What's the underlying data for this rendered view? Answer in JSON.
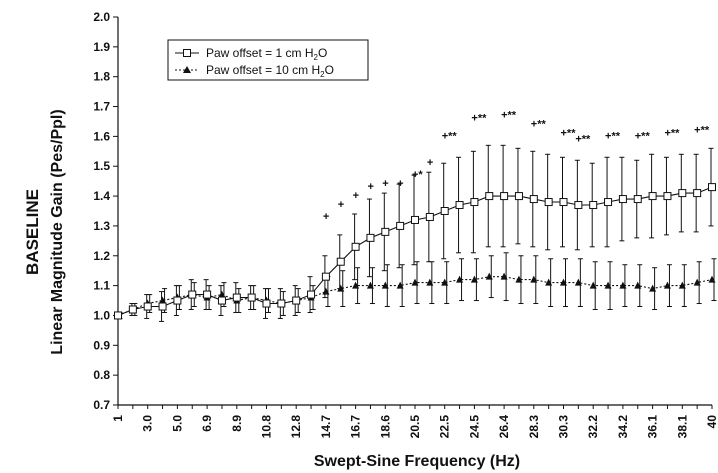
{
  "chart_data": {
    "type": "line",
    "title": "",
    "ylabel_top": "BASELINE",
    "ylabel": "Linear Magnitude Gain (Pes/Ppl)",
    "xlabel": "Swept-Sine Frequency (Hz)",
    "ylim": [
      0.7,
      2.0
    ],
    "yticks": [
      "0.7",
      "0.8",
      "0.9",
      "1.0",
      "1.1",
      "1.2",
      "1.3",
      "1.4",
      "1.5",
      "1.6",
      "1.7",
      "1.8",
      "1.9",
      "2.0"
    ],
    "yticks_num": [
      0.7,
      0.8,
      0.9,
      1.0,
      1.1,
      1.2,
      1.3,
      1.4,
      1.5,
      1.6,
      1.7,
      1.8,
      1.9,
      2.0
    ],
    "xticks": [
      "1",
      "3.0",
      "5.0",
      "6.9",
      "8.9",
      "10.8",
      "12.8",
      "14.7",
      "16.7",
      "18.6",
      "20.5",
      "22.5",
      "24.5",
      "26.4",
      "28.3",
      "30.3",
      "32.2",
      "34.2",
      "36.1",
      "38.1",
      "40"
    ],
    "x": [
      1,
      1.975,
      2.95,
      3.925,
      4.9,
      5.875,
      6.85,
      7.825,
      8.8,
      9.775,
      10.75,
      11.725,
      12.7,
      13.675,
      14.65,
      15.625,
      16.6,
      17.575,
      18.55,
      19.525,
      20.5,
      21.475,
      22.45,
      23.425,
      24.4,
      25.375,
      26.35,
      27.325,
      28.3,
      29.275,
      30.25,
      31.225,
      32.2,
      33.175,
      34.15,
      35.125,
      36.1,
      37.075,
      38.05,
      39.025,
      40
    ],
    "series": [
      {
        "name": "Paw offset = 1 cm H2O",
        "name_parts": [
          "Paw offset = 1 cm H",
          "2",
          "O"
        ],
        "marker": "square",
        "values": [
          1.0,
          1.02,
          1.03,
          1.03,
          1.05,
          1.07,
          1.07,
          1.05,
          1.06,
          1.06,
          1.04,
          1.04,
          1.05,
          1.07,
          1.13,
          1.18,
          1.23,
          1.26,
          1.28,
          1.3,
          1.32,
          1.33,
          1.35,
          1.37,
          1.38,
          1.4,
          1.4,
          1.4,
          1.39,
          1.38,
          1.38,
          1.37,
          1.37,
          1.38,
          1.39,
          1.39,
          1.4,
          1.4,
          1.41,
          1.41,
          1.43
        ],
        "errors": [
          0.01,
          0.02,
          0.04,
          0.05,
          0.05,
          0.05,
          0.05,
          0.05,
          0.05,
          0.04,
          0.05,
          0.05,
          0.05,
          0.06,
          0.07,
          0.09,
          0.11,
          0.13,
          0.13,
          0.14,
          0.15,
          0.15,
          0.16,
          0.16,
          0.17,
          0.17,
          0.17,
          0.16,
          0.16,
          0.16,
          0.15,
          0.15,
          0.14,
          0.15,
          0.14,
          0.13,
          0.14,
          0.13,
          0.13,
          0.13,
          0.13
        ]
      },
      {
        "name": "Paw offset = 10 cm H2O",
        "name_parts": [
          "Paw offset = 10 cm H",
          "2",
          "O"
        ],
        "marker": "triangle",
        "values": [
          1.0,
          1.02,
          1.04,
          1.05,
          1.06,
          1.07,
          1.06,
          1.07,
          1.05,
          1.06,
          1.05,
          1.04,
          1.05,
          1.06,
          1.08,
          1.09,
          1.1,
          1.1,
          1.1,
          1.1,
          1.11,
          1.11,
          1.11,
          1.12,
          1.12,
          1.13,
          1.13,
          1.12,
          1.12,
          1.11,
          1.11,
          1.11,
          1.1,
          1.1,
          1.1,
          1.1,
          1.09,
          1.1,
          1.1,
          1.11,
          1.12
        ],
        "errors": [
          0.01,
          0.02,
          0.03,
          0.04,
          0.04,
          0.04,
          0.04,
          0.04,
          0.04,
          0.04,
          0.04,
          0.04,
          0.04,
          0.04,
          0.05,
          0.06,
          0.06,
          0.06,
          0.07,
          0.07,
          0.07,
          0.07,
          0.07,
          0.07,
          0.07,
          0.07,
          0.08,
          0.08,
          0.08,
          0.08,
          0.08,
          0.08,
          0.08,
          0.08,
          0.07,
          0.07,
          0.07,
          0.07,
          0.07,
          0.07,
          0.07
        ]
      }
    ],
    "significance_markers": [
      {
        "x": 14.65,
        "y": 1.32,
        "text": "+"
      },
      {
        "x": 15.625,
        "y": 1.36,
        "text": "+"
      },
      {
        "x": 16.6,
        "y": 1.39,
        "text": "+"
      },
      {
        "x": 17.575,
        "y": 1.42,
        "text": "+"
      },
      {
        "x": 18.55,
        "y": 1.43,
        "text": "+"
      },
      {
        "x": 19.525,
        "y": 1.43,
        "text": "+"
      },
      {
        "x": 20.5,
        "y": 1.46,
        "text": "+*"
      },
      {
        "x": 21.475,
        "y": 1.5,
        "text": "+"
      },
      {
        "x": 22.45,
        "y": 1.59,
        "text": "+**"
      },
      {
        "x": 24.4,
        "y": 1.65,
        "text": "+**"
      },
      {
        "x": 26.35,
        "y": 1.66,
        "text": "+**"
      },
      {
        "x": 28.3,
        "y": 1.63,
        "text": "+**"
      },
      {
        "x": 30.25,
        "y": 1.6,
        "text": "+**"
      },
      {
        "x": 31.225,
        "y": 1.58,
        "text": "+**"
      },
      {
        "x": 33.175,
        "y": 1.59,
        "text": "+**"
      },
      {
        "x": 35.125,
        "y": 1.59,
        "text": "+**"
      },
      {
        "x": 37.075,
        "y": 1.6,
        "text": "+**"
      },
      {
        "x": 39.025,
        "y": 1.61,
        "text": "+**"
      }
    ],
    "legend_position": "top-left",
    "grid": false
  }
}
